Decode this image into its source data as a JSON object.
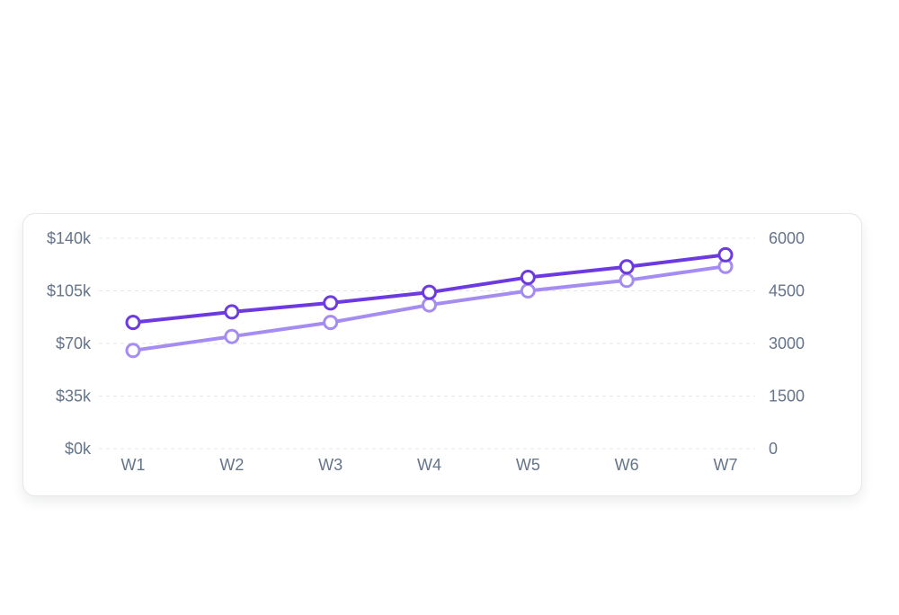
{
  "chart_data": {
    "type": "line",
    "categories": [
      "W1",
      "W2",
      "W3",
      "W4",
      "W5",
      "W6",
      "W7"
    ],
    "series": [
      {
        "axis": "left",
        "color": "#6d3ae0",
        "values": [
          84000,
          91000,
          97000,
          104000,
          114000,
          121000,
          129000
        ]
      },
      {
        "axis": "right",
        "color": "#a58cf2",
        "values": [
          2800,
          3200,
          3600,
          4100,
          4500,
          4800,
          5200
        ]
      }
    ],
    "left_axis": {
      "ticks": [
        "$0k",
        "$35k",
        "$70k",
        "$105k",
        "$140k"
      ],
      "ylim": [
        0,
        140000
      ]
    },
    "right_axis": {
      "ticks": [
        "0",
        "1500",
        "3000",
        "4500",
        "6000"
      ],
      "ylim": [
        0,
        6000
      ]
    },
    "title": "",
    "xlabel": "",
    "ylabel": "",
    "grid": true,
    "legend": "none"
  }
}
